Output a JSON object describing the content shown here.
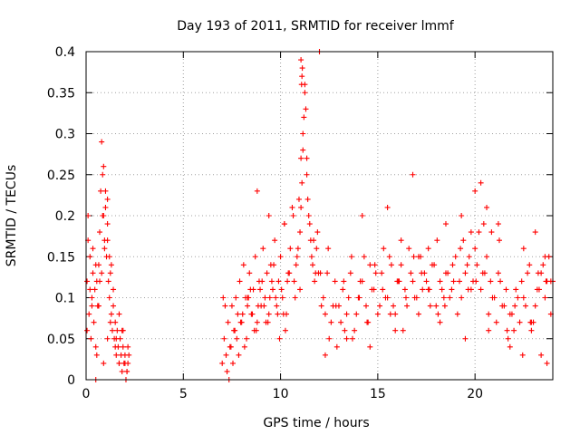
{
  "chart_data": {
    "type": "scatter",
    "title": "Day 193 of 2011, SRMTID for receiver lmmf",
    "xlabel": "GPS time / hours",
    "ylabel": "SRMTID / TECUs",
    "xlim": [
      0,
      24
    ],
    "ylim": [
      0,
      0.4
    ],
    "x_ticks": [
      0,
      5,
      10,
      15,
      20
    ],
    "x_tick_labels": [
      "0",
      "5",
      "10",
      "15",
      "20"
    ],
    "y_ticks": [
      0,
      0.05,
      0.1,
      0.15,
      0.2,
      0.25,
      0.3,
      0.35,
      0.4
    ],
    "y_tick_labels": [
      "0",
      "0.05",
      "0.1",
      "0.15",
      "0.2",
      "0.25",
      "0.3",
      "0.35",
      "0.4"
    ],
    "grid": true,
    "marker": "+",
    "marker_color": "#ff0000",
    "series": [
      {
        "name": "SRMTID",
        "x": [
          0.05,
          0.1,
          0.15,
          0.2,
          0.25,
          0.3,
          0.35,
          0.4,
          0.45,
          0.5,
          0.55,
          0.6,
          0.65,
          0.7,
          0.75,
          0.8,
          0.85,
          0.9,
          0.95,
          1.0,
          1.05,
          1.1,
          1.15,
          1.2,
          1.25,
          1.3,
          1.35,
          1.4,
          1.45,
          1.5,
          1.55,
          1.6,
          1.65,
          1.7,
          1.75,
          1.8,
          1.85,
          1.9,
          1.95,
          2.0,
          2.05,
          2.1,
          2.15,
          2.2,
          0.05,
          0.2,
          0.35,
          0.5,
          0.65,
          0.8,
          0.95,
          1.1,
          1.25,
          1.4,
          1.55,
          1.7,
          1.85,
          2.0,
          2.15,
          0.1,
          0.3,
          0.5,
          0.7,
          0.9,
          1.1,
          1.3,
          1.5,
          1.7,
          1.9,
          2.1,
          0.85,
          0.9,
          1.0,
          1.1,
          1.2,
          0.55,
          0.6,
          7.0,
          7.1,
          7.2,
          7.3,
          7.4,
          7.5,
          7.6,
          7.7,
          7.8,
          7.9,
          8.0,
          8.1,
          8.2,
          8.3,
          8.4,
          8.5,
          8.6,
          8.7,
          8.8,
          8.9,
          9.0,
          9.1,
          9.2,
          9.3,
          9.4,
          9.5,
          9.6,
          9.7,
          9.8,
          9.9,
          10.0,
          10.1,
          10.2,
          10.3,
          10.4,
          10.5,
          7.05,
          7.25,
          7.45,
          7.65,
          7.85,
          8.05,
          8.25,
          8.45,
          8.65,
          8.85,
          9.05,
          9.25,
          9.45,
          9.65,
          9.85,
          10.05,
          10.25,
          10.45,
          7.15,
          7.35,
          7.55,
          7.75,
          7.95,
          8.15,
          8.35,
          8.55,
          8.75,
          8.95,
          9.15,
          9.35,
          9.55,
          9.75,
          9.95,
          10.15,
          10.35,
          8.3,
          8.8,
          9.4,
          10.2,
          10.6,
          10.7,
          10.8,
          10.9,
          11.0,
          11.05,
          11.1,
          11.15,
          11.2,
          11.25,
          11.3,
          11.35,
          11.4,
          11.5,
          11.6,
          11.7,
          11.8,
          11.9,
          10.65,
          10.75,
          10.85,
          10.95,
          11.05,
          11.15,
          11.25,
          11.35,
          11.45,
          11.55,
          11.65,
          11.75,
          11.85,
          11.95,
          11.0,
          11.05,
          11.1,
          11.08,
          11.12,
          12.0,
          12.2,
          12.4,
          12.6,
          12.8,
          13.0,
          13.2,
          13.4,
          13.6,
          13.8,
          14.0,
          14.2,
          14.4,
          14.6,
          14.8,
          15.0,
          15.2,
          15.4,
          15.6,
          15.8,
          16.0,
          16.2,
          16.4,
          16.6,
          16.8,
          17.0,
          17.2,
          17.4,
          17.6,
          17.8,
          18.0,
          18.2,
          18.4,
          18.6,
          18.8,
          19.0,
          19.2,
          19.4,
          19.6,
          19.8,
          20.0,
          20.2,
          20.4,
          20.6,
          20.8,
          21.0,
          21.2,
          21.4,
          21.6,
          21.8,
          22.0,
          22.2,
          22.4,
          22.6,
          22.8,
          23.0,
          23.2,
          23.4,
          23.6,
          23.8,
          24.0,
          12.1,
          12.3,
          12.5,
          12.7,
          12.9,
          13.1,
          13.3,
          13.5,
          13.7,
          13.9,
          14.1,
          14.3,
          14.5,
          14.7,
          14.9,
          15.1,
          15.3,
          15.5,
          15.7,
          15.9,
          16.1,
          16.3,
          16.5,
          16.7,
          16.9,
          17.1,
          17.3,
          17.5,
          17.7,
          17.9,
          18.1,
          18.3,
          18.5,
          18.7,
          18.9,
          19.1,
          19.3,
          19.5,
          19.7,
          19.9,
          20.1,
          20.3,
          20.5,
          20.7,
          20.9,
          21.1,
          21.3,
          21.5,
          21.7,
          21.9,
          22.1,
          22.3,
          22.5,
          22.7,
          22.9,
          23.1,
          23.3,
          23.5,
          23.7,
          23.9,
          12.05,
          12.45,
          12.85,
          13.25,
          13.65,
          14.05,
          14.45,
          14.85,
          15.25,
          15.65,
          16.05,
          16.45,
          16.85,
          17.25,
          17.65,
          18.05,
          18.45,
          18.85,
          19.25,
          19.65,
          20.05,
          20.45,
          20.85,
          21.25,
          21.65,
          22.05,
          22.45,
          22.85,
          23.25,
          23.65,
          14.2,
          15.5,
          16.2,
          16.8,
          17.6,
          18.5,
          19.3,
          19.8,
          20.0,
          20.3,
          20.6,
          21.2,
          22.5,
          23.1,
          23.6,
          23.9,
          12.3,
          13.4,
          14.6,
          15.9,
          17.1,
          18.2,
          19.5,
          20.7,
          21.8,
          22.9,
          23.4,
          23.7
        ],
        "y": [
          0.12,
          0.2,
          0.08,
          0.15,
          0.05,
          0.1,
          0.13,
          0.07,
          0.11,
          0.0,
          0.03,
          0.09,
          0.14,
          0.18,
          0.23,
          0.29,
          0.25,
          0.2,
          0.16,
          0.21,
          0.15,
          0.17,
          0.12,
          0.1,
          0.13,
          0.08,
          0.06,
          0.09,
          0.05,
          0.07,
          0.03,
          0.06,
          0.04,
          0.02,
          0.05,
          0.03,
          0.01,
          0.04,
          0.02,
          0.03,
          0.0,
          0.01,
          0.02,
          0.03,
          0.06,
          0.11,
          0.16,
          0.04,
          0.09,
          0.13,
          0.17,
          0.22,
          0.07,
          0.11,
          0.05,
          0.08,
          0.06,
          0.02,
          0.04,
          0.17,
          0.09,
          0.14,
          0.12,
          0.02,
          0.05,
          0.14,
          0.04,
          0.02,
          0.06,
          0.01,
          0.2,
          0.26,
          0.23,
          0.19,
          0.15,
          0.12,
          0.09,
          0.02,
          0.05,
          0.03,
          0.07,
          0.04,
          0.09,
          0.06,
          0.1,
          0.08,
          0.12,
          0.07,
          0.14,
          0.1,
          0.09,
          0.13,
          0.08,
          0.11,
          0.15,
          0.07,
          0.12,
          0.09,
          0.16,
          0.1,
          0.13,
          0.08,
          0.14,
          0.11,
          0.17,
          0.09,
          0.12,
          0.15,
          0.1,
          0.19,
          0.08,
          0.13,
          0.16,
          0.1,
          0.01,
          0.04,
          0.06,
          0.03,
          0.08,
          0.05,
          0.11,
          0.06,
          0.09,
          0.12,
          0.07,
          0.1,
          0.14,
          0.08,
          0.11,
          0.06,
          0.13,
          0.09,
          0.0,
          0.02,
          0.05,
          0.07,
          0.04,
          0.1,
          0.08,
          0.06,
          0.11,
          0.09,
          0.07,
          0.12,
          0.1,
          0.05,
          0.08,
          0.12,
          0.1,
          0.23,
          0.2,
          0.19,
          0.21,
          0.12,
          0.14,
          0.16,
          0.18,
          0.21,
          0.24,
          0.28,
          0.32,
          0.36,
          0.33,
          0.27,
          0.22,
          0.19,
          0.15,
          0.17,
          0.13,
          0.18,
          0.2,
          0.1,
          0.15,
          0.22,
          0.27,
          0.3,
          0.35,
          0.25,
          0.2,
          0.17,
          0.14,
          0.12,
          0.16,
          0.13,
          0.11,
          0.39,
          0.37,
          0.36,
          0.38,
          0.4,
          0.1,
          0.13,
          0.07,
          0.12,
          0.09,
          0.11,
          0.08,
          0.13,
          0.06,
          0.1,
          0.12,
          0.09,
          0.14,
          0.11,
          0.08,
          0.13,
          0.1,
          0.15,
          0.09,
          0.12,
          0.14,
          0.11,
          0.16,
          0.12,
          0.1,
          0.15,
          0.13,
          0.11,
          0.14,
          0.09,
          0.12,
          0.1,
          0.13,
          0.11,
          0.15,
          0.12,
          0.17,
          0.14,
          0.11,
          0.16,
          0.18,
          0.13,
          0.15,
          0.12,
          0.1,
          0.13,
          0.09,
          0.11,
          0.08,
          0.06,
          0.1,
          0.12,
          0.09,
          0.14,
          0.07,
          0.11,
          0.13,
          0.1,
          0.15,
          0.12,
          0.09,
          0.08,
          0.05,
          0.09,
          0.04,
          0.07,
          0.06,
          0.1,
          0.05,
          0.08,
          0.12,
          0.15,
          0.07,
          0.11,
          0.13,
          0.09,
          0.16,
          0.1,
          0.14,
          0.08,
          0.12,
          0.06,
          0.09,
          0.13,
          0.1,
          0.15,
          0.11,
          0.12,
          0.09,
          0.14,
          0.08,
          0.11,
          0.13,
          0.1,
          0.12,
          0.08,
          0.1,
          0.13,
          0.15,
          0.12,
          0.14,
          0.11,
          0.13,
          0.08,
          0.1,
          0.07,
          0.12,
          0.09,
          0.05,
          0.08,
          0.11,
          0.07,
          0.1,
          0.13,
          0.06,
          0.09,
          0.11,
          0.14,
          0.12,
          0.08,
          0.13,
          0.16,
          0.09,
          0.12,
          0.15,
          0.1,
          0.07,
          0.14,
          0.11,
          0.08,
          0.12,
          0.1,
          0.15,
          0.13,
          0.11,
          0.17,
          0.09,
          0.14,
          0.16,
          0.11,
          0.12,
          0.19,
          0.18,
          0.17,
          0.06,
          0.09,
          0.03,
          0.07,
          0.13,
          0.12,
          0.2,
          0.21,
          0.17,
          0.25,
          0.16,
          0.19,
          0.2,
          0.18,
          0.23,
          0.24,
          0.21,
          0.19,
          0.16,
          0.18,
          0.15,
          0.12,
          0.03,
          0.05,
          0.04,
          0.06,
          0.08,
          0.07,
          0.05,
          0.06,
          0.04,
          0.07,
          0.03,
          0.02
        ]
      }
    ]
  }
}
